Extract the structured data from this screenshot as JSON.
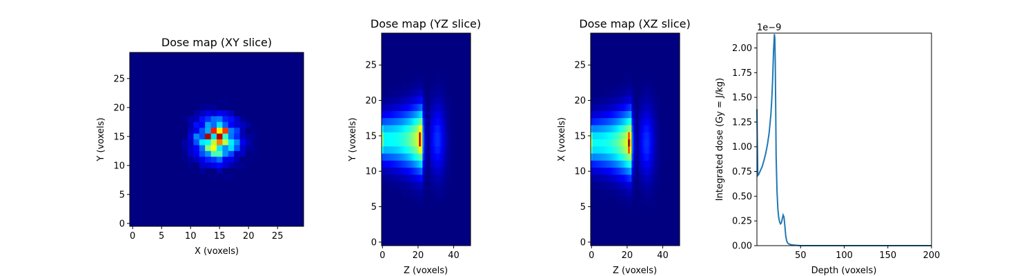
{
  "chart_data": [
    {
      "type": "heatmap",
      "title": "Dose map (XY slice)",
      "xlabel": "X (voxels)",
      "ylabel": "Y (voxels)",
      "colormap": "jet",
      "xlim": [
        -0.5,
        29.5
      ],
      "ylim": [
        29.5,
        -0.5
      ],
      "xticks": [
        0,
        5,
        10,
        15,
        20,
        25
      ],
      "yticks": [
        0,
        5,
        10,
        15,
        20,
        25
      ],
      "grid": false,
      "blob": {
        "center": [
          14.5,
          14.5
        ],
        "radius": 4.5,
        "peak_cells": [
          [
            13,
            14
          ],
          [
            15,
            14
          ]
        ]
      }
    },
    {
      "type": "heatmap",
      "title": "Dose map (YZ slice)",
      "xlabel": "Z (voxels)",
      "ylabel": "Y (voxels)",
      "colormap": "jet",
      "xlim": [
        -0.5,
        49.5
      ],
      "ylim": [
        29.5,
        -0.5
      ],
      "xticks": [
        0,
        20,
        40
      ],
      "yticks": [
        0,
        5,
        10,
        15,
        20,
        25
      ],
      "grid": false,
      "bragg_peak_z": 21,
      "beam_center": 14.5
    },
    {
      "type": "heatmap",
      "title": "Dose map (XZ slice)",
      "xlabel": "Z (voxels)",
      "ylabel": "X (voxels)",
      "colormap": "jet",
      "xlim": [
        -0.5,
        49.5
      ],
      "ylim": [
        29.5,
        -0.5
      ],
      "xticks": [
        0,
        20,
        40
      ],
      "yticks": [
        0,
        5,
        10,
        15,
        20,
        25
      ],
      "grid": false,
      "bragg_peak_z": 21,
      "beam_center": 15
    },
    {
      "type": "line",
      "title": "",
      "xlabel": "Depth (voxels)",
      "ylabel": "Integrated dose (Gy = J/kg)",
      "offset_text": "1e−9",
      "xlim": [
        0,
        200
      ],
      "ylim": [
        0,
        2.15
      ],
      "xticks": [
        50,
        100,
        150,
        200
      ],
      "yticks": [
        0.0,
        0.25,
        0.5,
        0.75,
        1.0,
        1.25,
        1.5,
        1.75,
        2.0
      ],
      "ytick_labels": [
        "0.00",
        "0.25",
        "0.50",
        "0.75",
        "1.00",
        "1.25",
        "1.50",
        "1.75",
        "2.00"
      ],
      "grid": false,
      "color": "#1f77b4",
      "series": [
        {
          "x": [
            0,
            1,
            2,
            4,
            6,
            8,
            10,
            12,
            14,
            16,
            17,
            18,
            19,
            20,
            20.5,
            21,
            21.5,
            22,
            23,
            24,
            25,
            26,
            27,
            28,
            29,
            30,
            31,
            32,
            33,
            34,
            35,
            36,
            38,
            40,
            43,
            46,
            50,
            55,
            60,
            80,
            120,
            160,
            200
          ],
          "y": [
            1.38,
            0.71,
            0.72,
            0.76,
            0.8,
            0.86,
            0.93,
            1.02,
            1.14,
            1.33,
            1.48,
            1.68,
            1.96,
            2.14,
            2.1,
            1.85,
            1.4,
            0.9,
            0.55,
            0.37,
            0.28,
            0.24,
            0.22,
            0.23,
            0.27,
            0.31,
            0.29,
            0.2,
            0.1,
            0.05,
            0.03,
            0.02,
            0.012,
            0.008,
            0.005,
            0.003,
            0.0,
            0.0,
            0.0,
            0.0,
            0.0,
            0.0,
            0.0
          ]
        }
      ]
    }
  ]
}
